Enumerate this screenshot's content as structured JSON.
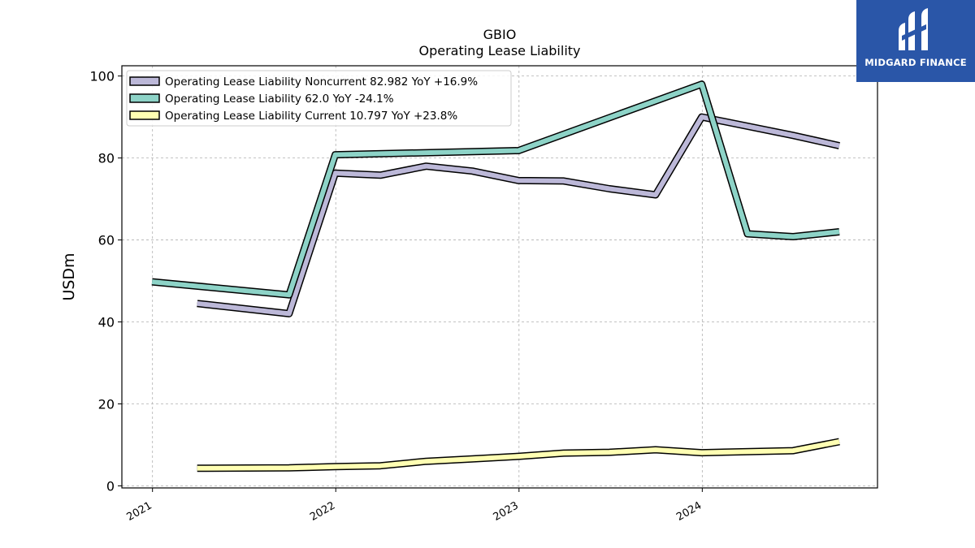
{
  "brand": {
    "name": "MIDGARD FINANCE",
    "color": "#2a56a8"
  },
  "chart_data": {
    "type": "line",
    "title": "GBIO",
    "subtitle": "Operating Lease Liability",
    "xlabel": "",
    "ylabel": "USDm",
    "xlim": [
      "2020-11-01",
      "2024-12-15"
    ],
    "ylim": [
      -0.5,
      102.5
    ],
    "x_ticks": [
      "2021",
      "2022",
      "2023",
      "2024"
    ],
    "y_ticks": [
      0,
      20,
      40,
      60,
      80,
      100
    ],
    "grid": true,
    "legend_position": "top-left",
    "series": [
      {
        "name": "Operating Lease Liability Noncurrent  82.982 YoY +16.9%",
        "color": "#bcb8d8",
        "points": [
          [
            "2021-03-31",
            44.5
          ],
          [
            "2021-09-30",
            42.0
          ],
          [
            "2021-12-31",
            76.3
          ],
          [
            "2022-03-31",
            75.8
          ],
          [
            "2022-06-30",
            78.0
          ],
          [
            "2022-09-30",
            76.8
          ],
          [
            "2022-12-31",
            74.5
          ],
          [
            "2023-03-31",
            74.4
          ],
          [
            "2023-06-30",
            72.5
          ],
          [
            "2023-09-30",
            71.0
          ],
          [
            "2023-12-31",
            90.0
          ],
          [
            "2024-06-30",
            85.5
          ],
          [
            "2024-09-30",
            82.982
          ]
        ]
      },
      {
        "name": "Operating Lease Liability  62.0 YoY -24.1%",
        "color": "#8dd3c7",
        "points": [
          [
            "2020-12-31",
            49.8
          ],
          [
            "2021-09-30",
            46.6
          ],
          [
            "2021-12-31",
            80.8
          ],
          [
            "2022-12-31",
            81.8
          ],
          [
            "2023-12-31",
            98.0
          ],
          [
            "2024-03-31",
            61.5
          ],
          [
            "2024-06-30",
            60.8
          ],
          [
            "2024-09-30",
            62.0
          ]
        ]
      },
      {
        "name": "Operating Lease Liability Current  10.797 YoY +23.8%",
        "color": "#ffffb3",
        "points": [
          [
            "2021-03-31",
            4.3
          ],
          [
            "2021-09-30",
            4.4
          ],
          [
            "2021-12-31",
            4.7
          ],
          [
            "2022-03-31",
            4.9
          ],
          [
            "2022-06-30",
            6.0
          ],
          [
            "2022-09-30",
            6.6
          ],
          [
            "2022-12-31",
            7.2
          ],
          [
            "2023-03-31",
            8.0
          ],
          [
            "2023-06-30",
            8.2
          ],
          [
            "2023-09-30",
            8.8
          ],
          [
            "2023-12-31",
            8.1
          ],
          [
            "2024-06-30",
            8.6
          ],
          [
            "2024-09-30",
            10.797
          ]
        ]
      }
    ]
  }
}
